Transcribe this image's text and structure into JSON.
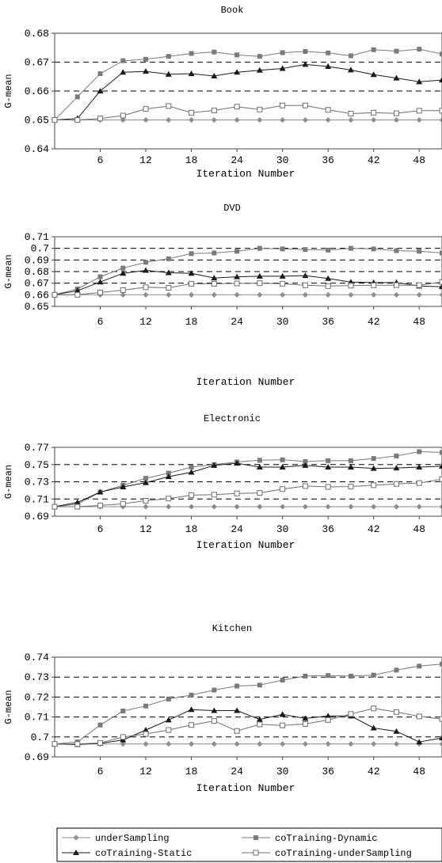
{
  "chart_data": [
    {
      "type": "line",
      "title": "Book",
      "xlabel": "Iteration Number",
      "ylabel": "G-mean",
      "xlim": [
        0,
        51
      ],
      "ylim": [
        0.64,
        0.68
      ],
      "yticks": [
        0.64,
        0.65,
        0.66,
        0.67,
        0.68
      ],
      "ytick_labels": [
        "0.64",
        "0.65",
        "0.66",
        "0.67",
        "0.68"
      ],
      "xticks": [
        6,
        12,
        18,
        24,
        30,
        36,
        42,
        48
      ],
      "xtick_labels": [
        "6",
        "12",
        "18",
        "24",
        "30",
        "36",
        "42",
        "48"
      ],
      "dashed_gridlines": [
        0.65,
        0.66,
        0.67
      ],
      "x": [
        0,
        3,
        6,
        9,
        12,
        15,
        18,
        21,
        24,
        27,
        30,
        33,
        36,
        39,
        42,
        45,
        48,
        51
      ],
      "series": [
        {
          "name": "underSampling",
          "values": [
            0.65,
            0.65,
            0.65,
            0.65,
            0.65,
            0.65,
            0.65,
            0.65,
            0.65,
            0.65,
            0.65,
            0.65,
            0.65,
            0.65,
            0.65,
            0.65,
            0.65,
            0.65
          ]
        },
        {
          "name": "coTraining-Dynamic",
          "values": [
            0.65,
            0.658,
            0.666,
            0.6705,
            0.671,
            0.672,
            0.673,
            0.6735,
            0.6725,
            0.672,
            0.6733,
            0.6737,
            0.6732,
            0.6722,
            0.6743,
            0.6738,
            0.6745,
            0.6728
          ]
        },
        {
          "name": "coTraining-Static",
          "values": [
            0.65,
            0.6505,
            0.66,
            0.6665,
            0.6668,
            0.6658,
            0.666,
            0.6652,
            0.6665,
            0.6672,
            0.6678,
            0.6692,
            0.6685,
            0.6673,
            0.6657,
            0.6645,
            0.6632,
            0.6638
          ]
        },
        {
          "name": "coTraining-underSampling",
          "values": [
            0.65,
            0.65,
            0.6505,
            0.6515,
            0.6538,
            0.6548,
            0.6525,
            0.6533,
            0.6546,
            0.6536,
            0.655,
            0.655,
            0.6535,
            0.6522,
            0.6525,
            0.6523,
            0.6532,
            0.6532
          ]
        }
      ]
    },
    {
      "type": "line",
      "title": "DVD",
      "xlabel": "Iteration Number",
      "ylabel": "G-mean",
      "xlim": [
        0,
        51
      ],
      "ylim": [
        0.65,
        0.71
      ],
      "yticks": [
        0.65,
        0.66,
        0.67,
        0.68,
        0.69,
        0.7,
        0.71
      ],
      "ytick_labels": [
        "0.65",
        "0.66",
        "0.67",
        "0.68",
        "0.69",
        "0.7",
        "0.71"
      ],
      "xticks": [
        6,
        12,
        18,
        24,
        30,
        36,
        42,
        48
      ],
      "xtick_labels": [
        "6",
        "12",
        "18",
        "24",
        "30",
        "36",
        "42",
        "48"
      ],
      "dashed_gridlines": [
        0.67,
        0.68,
        0.69,
        0.7
      ],
      "x": [
        0,
        3,
        6,
        9,
        12,
        15,
        18,
        21,
        24,
        27,
        30,
        33,
        36,
        39,
        42,
        45,
        48,
        51
      ],
      "series": [
        {
          "name": "underSampling",
          "values": [
            0.66,
            0.66,
            0.66,
            0.66,
            0.66,
            0.66,
            0.66,
            0.66,
            0.66,
            0.66,
            0.66,
            0.66,
            0.66,
            0.66,
            0.66,
            0.66,
            0.66,
            0.66
          ]
        },
        {
          "name": "coTraining-Dynamic",
          "values": [
            0.66,
            0.665,
            0.6755,
            0.683,
            0.688,
            0.691,
            0.6955,
            0.696,
            0.6975,
            0.7,
            0.6995,
            0.699,
            0.6985,
            0.7,
            0.6995,
            0.698,
            0.6975,
            0.696
          ]
        },
        {
          "name": "coTraining-Static",
          "values": [
            0.66,
            0.6635,
            0.671,
            0.6785,
            0.681,
            0.679,
            0.6785,
            0.6745,
            0.6755,
            0.676,
            0.676,
            0.6765,
            0.674,
            0.671,
            0.6705,
            0.6705,
            0.6675,
            0.667
          ]
        },
        {
          "name": "coTraining-underSampling",
          "values": [
            0.66,
            0.66,
            0.662,
            0.664,
            0.6665,
            0.666,
            0.6695,
            0.6695,
            0.6698,
            0.67,
            0.6695,
            0.6682,
            0.6675,
            0.6679,
            0.6682,
            0.6683,
            0.6683,
            0.671
          ]
        }
      ]
    },
    {
      "type": "line",
      "title": "Electronic",
      "xlabel": "Iteration Number",
      "ylabel": "G-mean",
      "xlim": [
        0,
        51
      ],
      "ylim": [
        0.69,
        0.77
      ],
      "yticks": [
        0.69,
        0.71,
        0.73,
        0.75,
        0.77
      ],
      "ytick_labels": [
        "0.69",
        "0.71",
        "0.73",
        "0.75",
        "0.77"
      ],
      "xticks": [
        6,
        12,
        18,
        24,
        30,
        36,
        42,
        48
      ],
      "xtick_labels": [
        "6",
        "12",
        "18",
        "24",
        "30",
        "36",
        "42",
        "48"
      ],
      "dashed_gridlines": [
        0.71,
        0.73,
        0.75
      ],
      "x": [
        0,
        3,
        6,
        9,
        12,
        15,
        18,
        21,
        24,
        27,
        30,
        33,
        36,
        39,
        42,
        45,
        48,
        51
      ],
      "series": [
        {
          "name": "underSampling",
          "values": [
            0.701,
            0.701,
            0.701,
            0.701,
            0.701,
            0.701,
            0.701,
            0.701,
            0.701,
            0.701,
            0.701,
            0.701,
            0.701,
            0.701,
            0.701,
            0.701,
            0.701,
            0.701
          ]
        },
        {
          "name": "coTraining-Dynamic",
          "values": [
            0.701,
            0.704,
            0.718,
            0.726,
            0.734,
            0.74,
            0.747,
            0.75,
            0.753,
            0.755,
            0.7555,
            0.7535,
            0.7545,
            0.7545,
            0.757,
            0.76,
            0.765,
            0.764
          ]
        },
        {
          "name": "coTraining-Static",
          "values": [
            0.701,
            0.706,
            0.718,
            0.724,
            0.729,
            0.736,
            0.741,
            0.749,
            0.7515,
            0.747,
            0.747,
            0.749,
            0.747,
            0.747,
            0.7455,
            0.746,
            0.747,
            0.748
          ]
        },
        {
          "name": "coTraining-underSampling",
          "values": [
            0.701,
            0.701,
            0.7025,
            0.7045,
            0.708,
            0.7105,
            0.7145,
            0.715,
            0.7165,
            0.717,
            0.7215,
            0.725,
            0.724,
            0.7245,
            0.726,
            0.7275,
            0.7285,
            0.733
          ]
        }
      ]
    },
    {
      "type": "line",
      "title": "Kitchen",
      "xlabel": "Iteration Number",
      "ylabel": "G-mean",
      "xlim": [
        0,
        51
      ],
      "ylim": [
        0.69,
        0.74
      ],
      "yticks": [
        0.69,
        0.7,
        0.71,
        0.72,
        0.73,
        0.74
      ],
      "ytick_labels": [
        "0.69",
        "0.7",
        "0.71",
        "0.72",
        "0.73",
        "0.74"
      ],
      "xticks": [
        6,
        12,
        18,
        24,
        30,
        36,
        42,
        48
      ],
      "xtick_labels": [
        "6",
        "12",
        "18",
        "24",
        "30",
        "36",
        "42",
        "48"
      ],
      "dashed_gridlines": [
        0.7,
        0.71,
        0.72,
        0.73
      ],
      "x": [
        0,
        3,
        6,
        9,
        12,
        15,
        18,
        21,
        24,
        27,
        30,
        33,
        36,
        39,
        42,
        45,
        48,
        51
      ],
      "series": [
        {
          "name": "underSampling",
          "values": [
            0.6965,
            0.6965,
            0.6965,
            0.6965,
            0.6965,
            0.6965,
            0.6965,
            0.6965,
            0.6965,
            0.6965,
            0.6965,
            0.6965,
            0.6965,
            0.6965,
            0.6965,
            0.6965,
            0.6965,
            0.6965
          ]
        },
        {
          "name": "coTraining-Dynamic",
          "values": [
            0.6965,
            0.6975,
            0.706,
            0.713,
            0.7155,
            0.719,
            0.721,
            0.7235,
            0.7255,
            0.726,
            0.7285,
            0.7305,
            0.7308,
            0.7305,
            0.731,
            0.7335,
            0.7355,
            0.7365
          ]
        },
        {
          "name": "coTraining-Static",
          "values": [
            0.6965,
            0.6962,
            0.6968,
            0.6985,
            0.7035,
            0.7085,
            0.7137,
            0.7132,
            0.7132,
            0.7088,
            0.7113,
            0.7093,
            0.7105,
            0.7105,
            0.7045,
            0.7028,
            0.6975,
            0.6995
          ]
        },
        {
          "name": "coTraining-underSampling",
          "values": [
            0.6965,
            0.6965,
            0.697,
            0.7,
            0.7015,
            0.7035,
            0.706,
            0.708,
            0.703,
            0.7063,
            0.7058,
            0.7065,
            0.7085,
            0.7115,
            0.7143,
            0.7125,
            0.7103,
            0.709
          ]
        }
      ]
    }
  ],
  "legend": {
    "placement": "bottom",
    "items": [
      {
        "label": "underSampling",
        "marker": "diamond"
      },
      {
        "label": "coTraining-Dynamic",
        "marker": "square"
      },
      {
        "label": "coTraining-Static",
        "marker": "triangle"
      },
      {
        "label": "coTraining-underSampling",
        "marker": "open-square"
      }
    ]
  },
  "colors": {
    "underSampling": "#8c8c8c",
    "coTraining-Dynamic": "#7a7a7a",
    "coTraining-Static": "#1a1a1a",
    "coTraining-underSampling": "#6e6e6e",
    "frame": "#444444",
    "grid": "#000000"
  }
}
